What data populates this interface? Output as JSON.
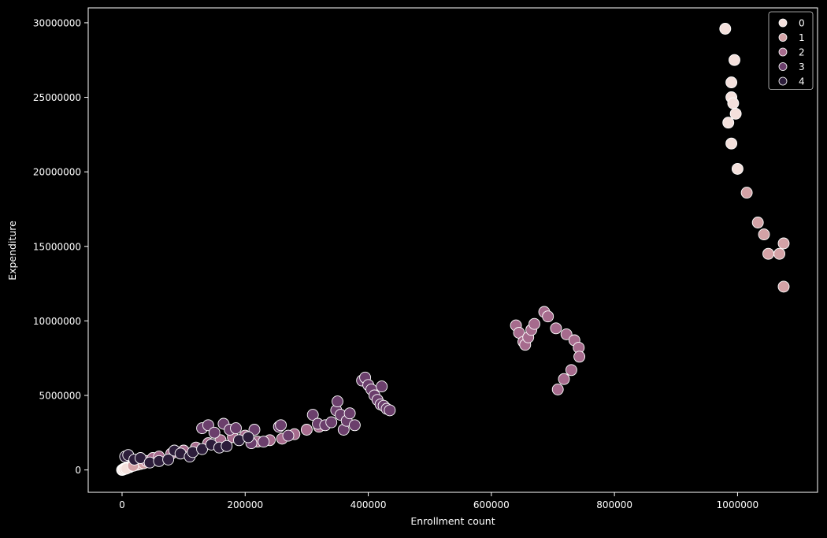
{
  "chart_data": {
    "type": "scatter",
    "title": "",
    "xlabel": "Enrollment count",
    "ylabel": "Expenditure",
    "xlim": [
      -55000,
      1130000
    ],
    "ylim": [
      -1500000,
      31000000
    ],
    "xticks": [
      0,
      200000,
      400000,
      600000,
      800000,
      1000000
    ],
    "xtick_labels": [
      "0",
      "200000",
      "400000",
      "600000",
      "800000",
      "1000000"
    ],
    "yticks": [
      0,
      5000000,
      10000000,
      15000000,
      20000000,
      25000000,
      30000000
    ],
    "ytick_labels": [
      "0",
      "5000000",
      "10000000",
      "15000000",
      "20000000",
      "25000000",
      "30000000"
    ],
    "grid": false,
    "background": "#000000",
    "legend": {
      "placement": "top-right",
      "entries": [
        {
          "label": "0",
          "color": "#f4e0dc"
        },
        {
          "label": "1",
          "color": "#d3a2a6"
        },
        {
          "label": "2",
          "color": "#a66b8d"
        },
        {
          "label": "3",
          "color": "#6b3f6c"
        },
        {
          "label": "4",
          "color": "#2c1d3a"
        }
      ]
    },
    "series": [
      {
        "name": "0",
        "color": "#f4e0dc",
        "points": [
          [
            0,
            0
          ],
          [
            2000,
            50000
          ],
          [
            5000,
            100000
          ],
          [
            8000,
            150000
          ],
          [
            1000,
            20000
          ],
          [
            3000,
            80000
          ],
          [
            6000,
            120000
          ],
          [
            10000,
            200000
          ],
          [
            12000,
            180000
          ],
          [
            15000,
            250000
          ],
          [
            4000,
            60000
          ],
          [
            7000,
            90000
          ],
          [
            980000,
            29600000
          ],
          [
            990000,
            25000000
          ],
          [
            995000,
            27500000
          ],
          [
            990000,
            26000000
          ],
          [
            985000,
            23300000
          ],
          [
            993000,
            24600000
          ],
          [
            997000,
            23900000
          ],
          [
            990000,
            21900000
          ],
          [
            1000000,
            20200000
          ]
        ]
      },
      {
        "name": "1",
        "color": "#d3a2a6",
        "points": [
          [
            20000,
            300000
          ],
          [
            25000,
            350000
          ],
          [
            30000,
            400000
          ],
          [
            18000,
            280000
          ],
          [
            35000,
            450000
          ],
          [
            1015000,
            18600000
          ],
          [
            1033000,
            16600000
          ],
          [
            1043000,
            15800000
          ],
          [
            1050000,
            14500000
          ],
          [
            1068000,
            14500000
          ],
          [
            1075000,
            15200000
          ],
          [
            1075000,
            12300000
          ]
        ]
      },
      {
        "name": "2",
        "color": "#a66b8d",
        "points": [
          [
            40000,
            600000
          ],
          [
            50000,
            800000
          ],
          [
            60000,
            900000
          ],
          [
            80000,
            1100000
          ],
          [
            100000,
            1300000
          ],
          [
            120000,
            1500000
          ],
          [
            140000,
            1800000
          ],
          [
            160000,
            2000000
          ],
          [
            180000,
            2200000
          ],
          [
            200000,
            2300000
          ],
          [
            220000,
            1900000
          ],
          [
            240000,
            2000000
          ],
          [
            260000,
            2100000
          ],
          [
            280000,
            2400000
          ],
          [
            300000,
            2700000
          ],
          [
            320000,
            2900000
          ],
          [
            640000,
            9700000
          ],
          [
            645000,
            9200000
          ],
          [
            652000,
            8600000
          ],
          [
            655000,
            8400000
          ],
          [
            660000,
            8900000
          ],
          [
            665000,
            9400000
          ],
          [
            670000,
            9800000
          ],
          [
            686000,
            10600000
          ],
          [
            692000,
            10300000
          ],
          [
            705000,
            9500000
          ],
          [
            722000,
            9100000
          ],
          [
            735000,
            8700000
          ],
          [
            742000,
            8200000
          ],
          [
            743000,
            7600000
          ],
          [
            730000,
            6700000
          ],
          [
            718000,
            6100000
          ],
          [
            708000,
            5400000
          ]
        ]
      },
      {
        "name": "3",
        "color": "#6b3f6c",
        "points": [
          [
            130000,
            2800000
          ],
          [
            140000,
            3000000
          ],
          [
            150000,
            2500000
          ],
          [
            165000,
            3100000
          ],
          [
            175000,
            2700000
          ],
          [
            185000,
            2800000
          ],
          [
            210000,
            1800000
          ],
          [
            215000,
            2700000
          ],
          [
            230000,
            1900000
          ],
          [
            255000,
            2900000
          ],
          [
            258000,
            3000000
          ],
          [
            270000,
            2300000
          ],
          [
            310000,
            3700000
          ],
          [
            318000,
            3100000
          ],
          [
            330000,
            3000000
          ],
          [
            340000,
            3200000
          ],
          [
            348000,
            4000000
          ],
          [
            350000,
            4600000
          ],
          [
            355000,
            3700000
          ],
          [
            360000,
            2700000
          ],
          [
            365000,
            3300000
          ],
          [
            370000,
            3800000
          ],
          [
            378000,
            3000000
          ],
          [
            390000,
            6000000
          ],
          [
            395000,
            6200000
          ],
          [
            400000,
            5700000
          ],
          [
            405000,
            5400000
          ],
          [
            410000,
            5000000
          ],
          [
            415000,
            4700000
          ],
          [
            420000,
            4400000
          ],
          [
            425000,
            4300000
          ],
          [
            422000,
            5600000
          ],
          [
            430000,
            4100000
          ],
          [
            435000,
            4000000
          ]
        ]
      },
      {
        "name": "4",
        "color": "#2c1d3a",
        "points": [
          [
            5000,
            900000
          ],
          [
            10000,
            1000000
          ],
          [
            20000,
            700000
          ],
          [
            30000,
            800000
          ],
          [
            45000,
            500000
          ],
          [
            60000,
            600000
          ],
          [
            75000,
            700000
          ],
          [
            85000,
            1300000
          ],
          [
            95000,
            1100000
          ],
          [
            110000,
            900000
          ],
          [
            115000,
            1200000
          ],
          [
            130000,
            1400000
          ],
          [
            145000,
            1700000
          ],
          [
            158000,
            1500000
          ],
          [
            170000,
            1600000
          ],
          [
            190000,
            2000000
          ],
          [
            205000,
            2200000
          ]
        ]
      }
    ]
  }
}
